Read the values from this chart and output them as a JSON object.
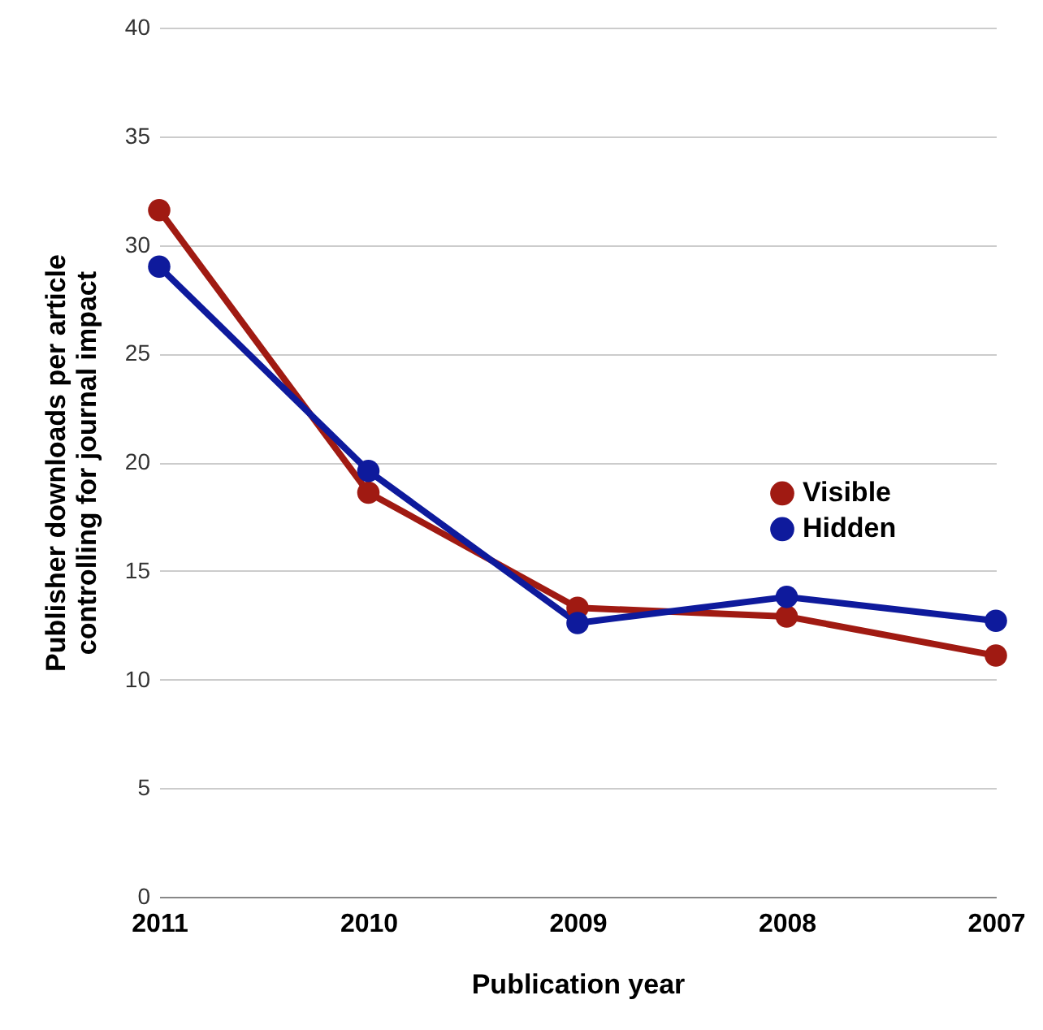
{
  "chart_data": {
    "type": "line",
    "xlabel": "Publication year",
    "ylabel": "Publisher downloads per article\ncontrolling for journal impact",
    "categories": [
      "2011",
      "2010",
      "2009",
      "2008",
      "2007"
    ],
    "series": [
      {
        "name": "Visible",
        "color": "#a01a12",
        "values": [
          31.6,
          18.6,
          13.3,
          12.9,
          11.1
        ]
      },
      {
        "name": "Hidden",
        "color": "#0e1a9c",
        "values": [
          29.0,
          19.6,
          12.6,
          13.8,
          12.7
        ]
      }
    ],
    "ylim": [
      0,
      40
    ],
    "yticks": [
      0,
      5,
      10,
      15,
      20,
      25,
      30,
      35,
      40
    ],
    "grid": "y",
    "legend": "right",
    "marker": "circle",
    "line_style": "solid"
  }
}
